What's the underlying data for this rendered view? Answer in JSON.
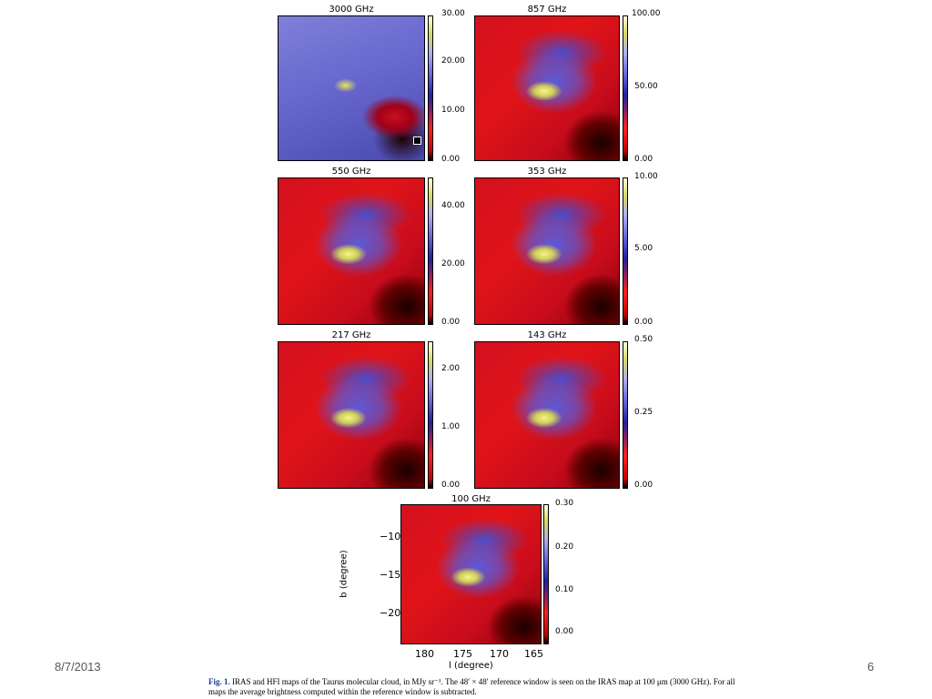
{
  "panels": [
    {
      "id": "p3000",
      "title": "3000 GHz",
      "ticks": [
        "30.00",
        "20.00",
        "10.00",
        "0.00"
      ]
    },
    {
      "id": "p857",
      "title": "857 GHz",
      "ticks": [
        "100.00",
        "50.00",
        "0.00"
      ]
    },
    {
      "id": "p550",
      "title": "550 GHz",
      "ticks": [
        "40.00",
        "20.00",
        "0.00"
      ]
    },
    {
      "id": "p353",
      "title": "353 GHz",
      "ticks": [
        "10.00",
        "5.00",
        "0.00"
      ]
    },
    {
      "id": "p217",
      "title": "217 GHz",
      "ticks": [
        "2.00",
        "1.00",
        "0.00"
      ]
    },
    {
      "id": "p143",
      "title": "143 GHz",
      "ticks": [
        "0.50",
        "0.25",
        "0.00"
      ]
    },
    {
      "id": "p100",
      "title": "100 GHz",
      "ticks": [
        "0.30",
        "0.20",
        "0.10",
        "0.00"
      ]
    }
  ],
  "axes": {
    "ylabel": "b (degree)",
    "yticks": [
      "−10",
      "−15",
      "−20"
    ],
    "xlabel": "l (degree)",
    "xticks": [
      "180",
      "175",
      "170",
      "165"
    ]
  },
  "footer": {
    "date": "8/7/2013",
    "page": "6"
  },
  "caption": {
    "fig": "Fig. 1.",
    "text": " IRAS and HFI maps of the Taurus molecular cloud, in MJy sr⁻¹. The 48′ × 48′ reference window is seen on the IRAS map at 100 μm (3000 GHz). For all maps the average brightness computed within the reference window is subtracted."
  }
}
